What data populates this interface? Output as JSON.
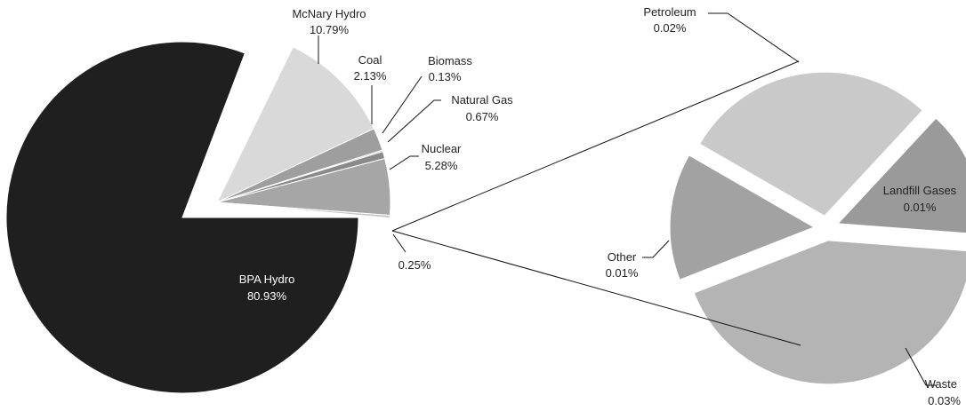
{
  "chart_data": [
    {
      "type": "pie",
      "title": "",
      "slices": [
        {
          "name": "BPA Hydro",
          "value_label": "80.93%",
          "value": 80.93,
          "color": "#1f1f1f"
        },
        {
          "name": "McNary Hydro",
          "value_label": "10.79%",
          "value": 10.79,
          "color": "#d9d9d9"
        },
        {
          "name": "Coal",
          "value_label": "2.13%",
          "value": 2.13,
          "color": "#9e9e9e"
        },
        {
          "name": "Biomass",
          "value_label": "0.13%",
          "value": 0.13,
          "color": "#b8b8b8"
        },
        {
          "name": "Natural Gas",
          "value_label": "0.67%",
          "value": 0.67,
          "color": "#8a8a8a"
        },
        {
          "name": "Nuclear",
          "value_label": "5.28%",
          "value": 5.28,
          "color": "#a6a6a6"
        },
        {
          "name": "",
          "value_label": "0.25%",
          "value": 0.25,
          "color": "#c8c8c8"
        }
      ]
    },
    {
      "type": "pie",
      "title": "",
      "slices": [
        {
          "name": "Petroleum",
          "value_label": "0.02%",
          "value": 0.02,
          "color": "#c9c9c9"
        },
        {
          "name": "Landfill Gases",
          "value_label": "0.01%",
          "value": 0.01,
          "color": "#9a9a9a"
        },
        {
          "name": "Waste",
          "value_label": "0.03%",
          "value": 0.03,
          "color": "#b4b4b4"
        },
        {
          "name": "Other",
          "value_label": "0.01%",
          "value": 0.01,
          "color": "#a2a2a2"
        }
      ]
    }
  ]
}
